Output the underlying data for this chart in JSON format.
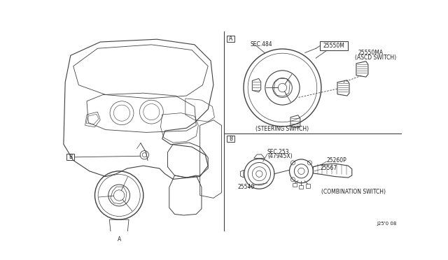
{
  "bg_color": "#ffffff",
  "line_color": "#404040",
  "text_color": "#202020",
  "labels": {
    "sec484": "SEC.484",
    "25550M": "25550M",
    "25550MA": "25550MA",
    "ascd": "(ASCD SWITCH)",
    "steering": "(STEERING SWITCH)",
    "label_A_top": "A",
    "label_B_bot": "B",
    "sec253": "SEC.253",
    "47945X": "(47945X)",
    "25260P": "25260P",
    "25567": "25567",
    "combination": "(COMBINATION SWITCH)",
    "25540": "25540",
    "label_A_left": "A",
    "label_B_left": "B",
    "doc_id": "J25'0 08"
  },
  "fs": 5.5
}
